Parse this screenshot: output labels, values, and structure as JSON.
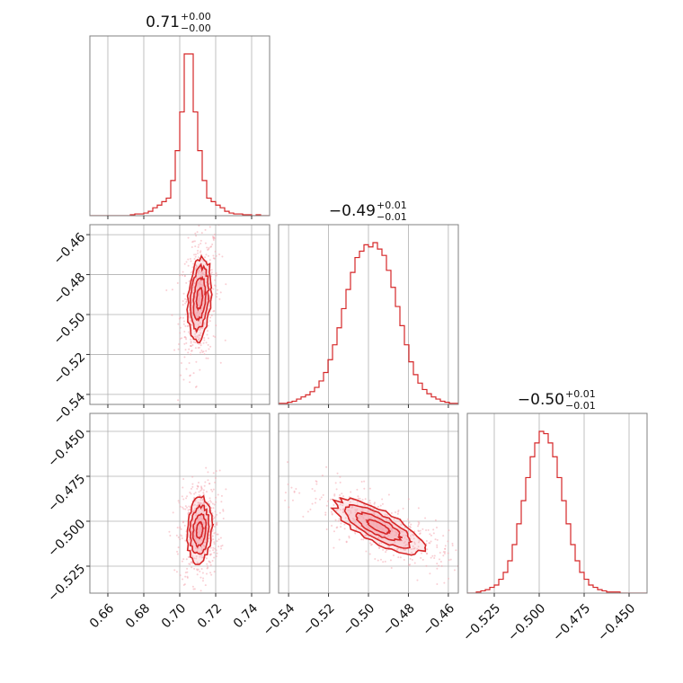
{
  "chart_data": {
    "type": "corner",
    "colors": {
      "accent": "#d62728",
      "fill": "#f4a7b0",
      "grid": "#b0b0b0",
      "frame": "#808080"
    },
    "titles": [
      {
        "main": "0.71",
        "sup": "+0.00",
        "sub": "−0.00"
      },
      {
        "main": "−0.49",
        "sup": "+0.01",
        "sub": "−0.01"
      },
      {
        "main": "−0.50",
        "sup": "+0.01",
        "sub": "−0.01"
      }
    ],
    "params": [
      {
        "range": [
          0.65,
          0.75
        ],
        "ticks": [
          0.66,
          0.68,
          0.7,
          0.72,
          0.74
        ],
        "tick_labels": [
          "0.66",
          "0.68",
          "0.70",
          "0.72",
          "0.74"
        ]
      },
      {
        "range": [
          -0.545,
          -0.455
        ],
        "ticks": [
          -0.54,
          -0.52,
          -0.5,
          -0.48,
          -0.46
        ],
        "tick_labels": [
          "−0.54",
          "−0.52",
          "−0.50",
          "−0.48",
          "−0.46"
        ]
      },
      {
        "range": [
          -0.54,
          -0.44
        ],
        "ticks": [
          -0.525,
          -0.5,
          -0.475,
          -0.45
        ],
        "tick_labels": [
          "−0.525",
          "−0.500",
          "−0.475",
          "−0.450"
        ]
      }
    ],
    "histograms": [
      {
        "edges_start": 0.65,
        "bin_width": 0.0025,
        "counts": [
          0,
          0,
          0,
          0,
          0,
          0,
          0,
          0,
          0,
          1,
          2,
          2,
          3,
          5,
          9,
          12,
          16,
          20,
          40,
          74,
          118,
          184,
          184,
          118,
          74,
          40,
          20,
          16,
          12,
          9,
          5,
          3,
          2,
          2,
          1,
          1,
          0,
          1,
          0,
          0
        ]
      },
      {
        "edges_start": -0.545,
        "bin_width": 0.00225,
        "counts": [
          1,
          1,
          2,
          3,
          5,
          7,
          9,
          12,
          16,
          22,
          30,
          42,
          56,
          72,
          90,
          108,
          124,
          138,
          144,
          150,
          148,
          152,
          146,
          140,
          126,
          110,
          92,
          74,
          56,
          40,
          28,
          20,
          14,
          10,
          7,
          5,
          3,
          2,
          1,
          1
        ]
      },
      {
        "edges_start": -0.54,
        "bin_width": 0.0025,
        "counts": [
          0,
          0,
          1,
          2,
          3,
          5,
          7,
          12,
          18,
          28,
          42,
          60,
          80,
          100,
          118,
          130,
          140,
          138,
          130,
          118,
          100,
          80,
          60,
          42,
          28,
          18,
          12,
          7,
          5,
          3,
          2,
          1,
          1,
          1,
          0,
          0,
          0,
          0,
          0,
          0
        ]
      }
    ],
    "pairs": [
      {
        "x_param": 0,
        "y_param": 1,
        "center": [
          0.711,
          -0.492
        ],
        "sd": [
          0.0033,
          0.0105
        ],
        "rho": 0.25
      },
      {
        "x_param": 0,
        "y_param": 2,
        "center": [
          0.711,
          -0.505
        ],
        "sd": [
          0.0035,
          0.009
        ],
        "rho": 0.15
      },
      {
        "x_param": 1,
        "y_param": 2,
        "center": [
          -0.495,
          -0.503
        ],
        "sd": [
          0.011,
          0.0075
        ],
        "rho": -0.75
      }
    ]
  }
}
